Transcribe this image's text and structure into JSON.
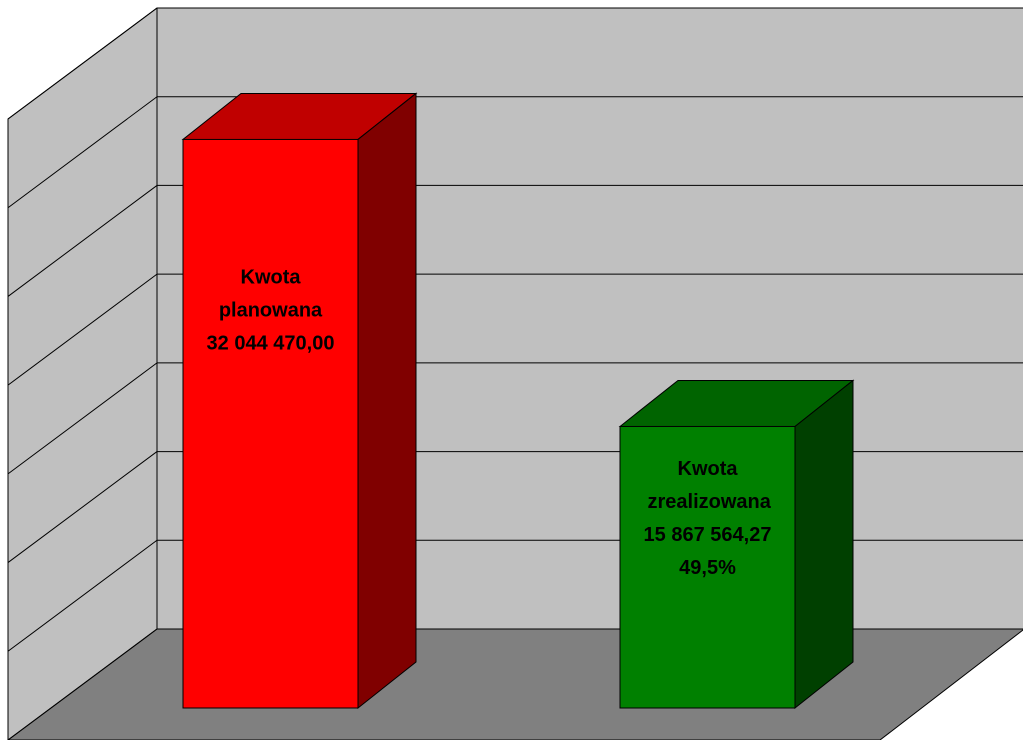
{
  "chart_data": {
    "type": "bar3d",
    "categories": [
      "Kwota planowana",
      "Kwota zrealizowana"
    ],
    "values": [
      32044470.0,
      15867564.27
    ],
    "value_labels": [
      "32 044 470,00",
      "15 867 564,27"
    ],
    "annotation": "49,5%",
    "colors": [
      {
        "front": "#ff0000",
        "top": "#c00000",
        "side": "#800000"
      },
      {
        "front": "#008000",
        "top": "#006400",
        "side": "#004000"
      }
    ],
    "ylim": [
      0,
      35000000
    ],
    "yticks": [
      0,
      5000000,
      10000000,
      15000000,
      20000000,
      25000000,
      30000000,
      35000000
    ],
    "grid": true
  }
}
